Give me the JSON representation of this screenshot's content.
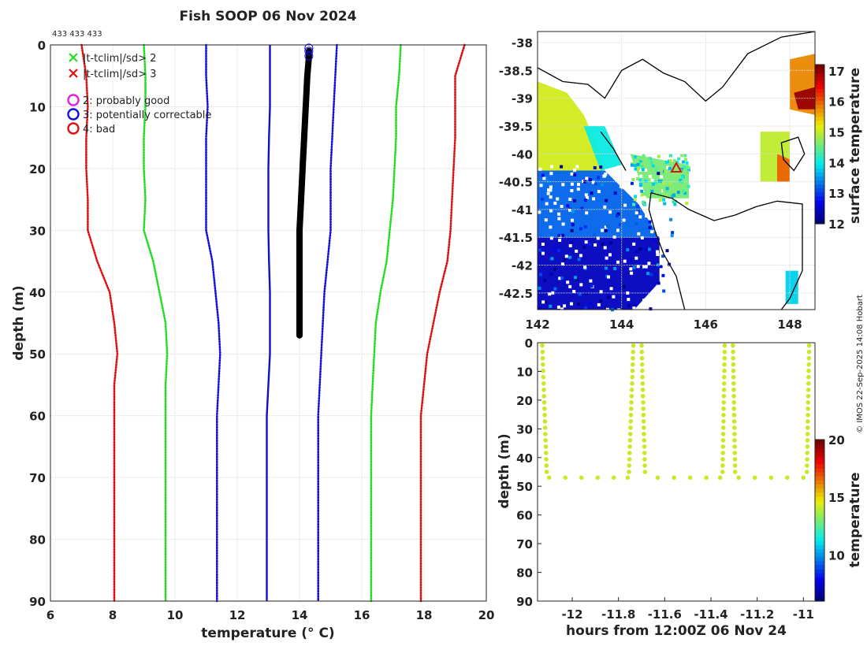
{
  "header": {
    "title": "Fish SOOP 06 Nov 2024",
    "top_counts": "433 433 433",
    "credit": "© IMOS 22-Sep-2025 14:08 Hobart"
  },
  "colors": {
    "clim_2sd": "#22dd22",
    "clim_3sd": "#dd1111",
    "clim_1sd": "#1111dd",
    "mean": "#1111cc",
    "profile": "#000000",
    "timeseries": "#99e02a",
    "map_triangle": "#dd1111"
  },
  "legend": {
    "items": [
      {
        "marker": "x",
        "color": "#22dd22",
        "label": "|t-tclim|/sd> 2"
      },
      {
        "marker": "x",
        "color": "#dd1111",
        "label": "|t-tclim|/sd> 3"
      },
      {
        "marker": "o",
        "color": "#dd22dd",
        "label": "2: probably good"
      },
      {
        "marker": "o",
        "color": "#1111dd",
        "label": "3: potentially correctable"
      },
      {
        "marker": "o",
        "color": "#dd1111",
        "label": "4: bad"
      }
    ]
  },
  "chart_data": [
    {
      "id": "profile",
      "type": "line",
      "title": "Fish SOOP 06 Nov 2024",
      "xlabel": "temperature (° C)",
      "ylabel": "depth (m)",
      "xlim": [
        6,
        20
      ],
      "ylim": [
        90,
        0
      ],
      "x_ticks": [
        6,
        8,
        10,
        12,
        14,
        16,
        18,
        20
      ],
      "y_ticks": [
        0,
        10,
        20,
        30,
        40,
        50,
        60,
        70,
        80,
        90
      ],
      "grid": true,
      "depths": [
        0,
        5,
        10,
        15,
        20,
        25,
        30,
        35,
        40,
        45,
        50,
        55,
        60,
        65,
        70,
        75,
        80,
        85,
        90
      ],
      "series": [
        {
          "name": "mean - 3sd",
          "style": "dotted",
          "color": "#dd1111",
          "x": [
            7.0,
            7.15,
            7.2,
            7.15,
            7.15,
            7.2,
            7.2,
            7.5,
            7.9,
            8.05,
            8.15,
            8.05,
            8.05,
            8.05,
            8.05,
            8.05,
            8.05,
            8.05,
            8.05
          ]
        },
        {
          "name": "mean - 2sd",
          "style": "dotted",
          "color": "#22dd22",
          "x": [
            9.0,
            9.05,
            9.05,
            9.0,
            9.0,
            9.05,
            9.0,
            9.3,
            9.5,
            9.7,
            9.75,
            9.7,
            9.7,
            9.7,
            9.7,
            9.7,
            9.7,
            9.7,
            9.7
          ]
        },
        {
          "name": "mean - 1sd",
          "style": "dotted",
          "color": "#1111dd",
          "x": [
            11.0,
            11.0,
            11.05,
            11.0,
            11.0,
            11.0,
            11.0,
            11.2,
            11.3,
            11.4,
            11.45,
            11.4,
            11.35,
            11.35,
            11.35,
            11.35,
            11.35,
            11.35,
            11.35
          ]
        },
        {
          "name": "mean",
          "style": "solid",
          "color": "#1111cc",
          "x": [
            13.05,
            13.05,
            13.05,
            13.02,
            13.0,
            13.0,
            13.0,
            13.02,
            13.05,
            13.05,
            13.05,
            13.0,
            12.95,
            12.95,
            12.95,
            12.95,
            12.95,
            12.95,
            12.95
          ]
        },
        {
          "name": "mean + 1sd",
          "style": "dotted",
          "color": "#1111dd",
          "x": [
            15.2,
            15.15,
            15.1,
            15.05,
            15.0,
            15.0,
            15.0,
            14.9,
            14.8,
            14.75,
            14.7,
            14.65,
            14.6,
            14.6,
            14.6,
            14.6,
            14.6,
            14.6,
            14.6
          ]
        },
        {
          "name": "mean + 2sd",
          "style": "dotted",
          "color": "#22dd22",
          "x": [
            17.25,
            17.2,
            17.1,
            17.1,
            17.05,
            17.0,
            16.9,
            16.8,
            16.6,
            16.45,
            16.4,
            16.35,
            16.3,
            16.3,
            16.3,
            16.3,
            16.3,
            16.3,
            16.3
          ]
        },
        {
          "name": "mean + 3sd",
          "style": "dotted",
          "color": "#dd1111",
          "x": [
            19.3,
            19.0,
            19.0,
            19.0,
            18.95,
            18.9,
            18.85,
            18.75,
            18.5,
            18.3,
            18.1,
            18.0,
            17.9,
            17.9,
            17.9,
            17.9,
            17.9,
            17.9,
            17.9
          ]
        }
      ],
      "profile": {
        "name": "observed profile",
        "color": "#000000",
        "depths": [
          1,
          2,
          5,
          10,
          15,
          20,
          25,
          30,
          35,
          40,
          45,
          47
        ],
        "x": [
          14.3,
          14.3,
          14.25,
          14.2,
          14.15,
          14.1,
          14.05,
          14.0,
          14.0,
          14.0,
          14.0,
          14.0
        ]
      },
      "flag_markers": [
        {
          "temperature": 14.3,
          "depth": 0.5,
          "flag": 3
        },
        {
          "temperature": 14.3,
          "depth": 1.0,
          "flag": 3
        },
        {
          "temperature": 14.3,
          "depth": 1.8,
          "flag": 3
        }
      ]
    },
    {
      "id": "sst-map",
      "type": "heatmap",
      "xlabel": "",
      "ylabel": "",
      "xlim": [
        142,
        148.6
      ],
      "ylim": [
        -42.8,
        -37.8
      ],
      "x_ticks": [
        142,
        144,
        146,
        148
      ],
      "y_ticks": [
        -38,
        -38.5,
        -39,
        -39.5,
        -40,
        -40.5,
        -41,
        -41.5,
        -42,
        -42.5
      ],
      "colorbar": {
        "label": "surface temperature",
        "range": [
          12,
          17.2
        ],
        "ticks": [
          12,
          13,
          14,
          15,
          16,
          17
        ]
      },
      "marker": {
        "shape": "triangle",
        "lon": 145.3,
        "lat": -40.25,
        "color": "#dd1111"
      }
    },
    {
      "id": "time-depth",
      "type": "scatter",
      "xlabel": "hours from 12:00Z 06 Nov 24",
      "ylabel": "depth (m)",
      "xlim": [
        -12.15,
        -10.95
      ],
      "ylim": [
        90,
        0
      ],
      "x_ticks": [
        -12,
        -11.8,
        -11.6,
        -11.4,
        -11.2,
        -11
      ],
      "y_ticks": [
        0,
        10,
        20,
        30,
        40,
        50,
        60,
        70,
        80,
        90
      ],
      "colorbar": {
        "label": "temperature",
        "range": [
          6,
          20
        ],
        "ticks": [
          10,
          15,
          20
        ]
      },
      "point_temperature": 14.2,
      "casts": [
        {
          "x_start": -12.13,
          "x_end": -12.11
        },
        {
          "x_start": -11.735,
          "x_end": -11.755
        },
        {
          "x_start": -11.7,
          "x_end": -11.685
        },
        {
          "x_start": -11.34,
          "x_end": -11.35
        },
        {
          "x_start": -11.305,
          "x_end": -11.295
        },
        {
          "x_start": -10.975,
          "x_end": -10.985
        }
      ],
      "bottom_points": {
        "depth": 47,
        "x": [
          -12.1,
          -12.03,
          -11.96,
          -11.89,
          -11.82,
          -11.76,
          -11.63,
          -11.56,
          -11.49,
          -11.42,
          -11.36,
          -11.28,
          -11.21,
          -11.14,
          -11.07,
          -11.0
        ]
      }
    }
  ]
}
